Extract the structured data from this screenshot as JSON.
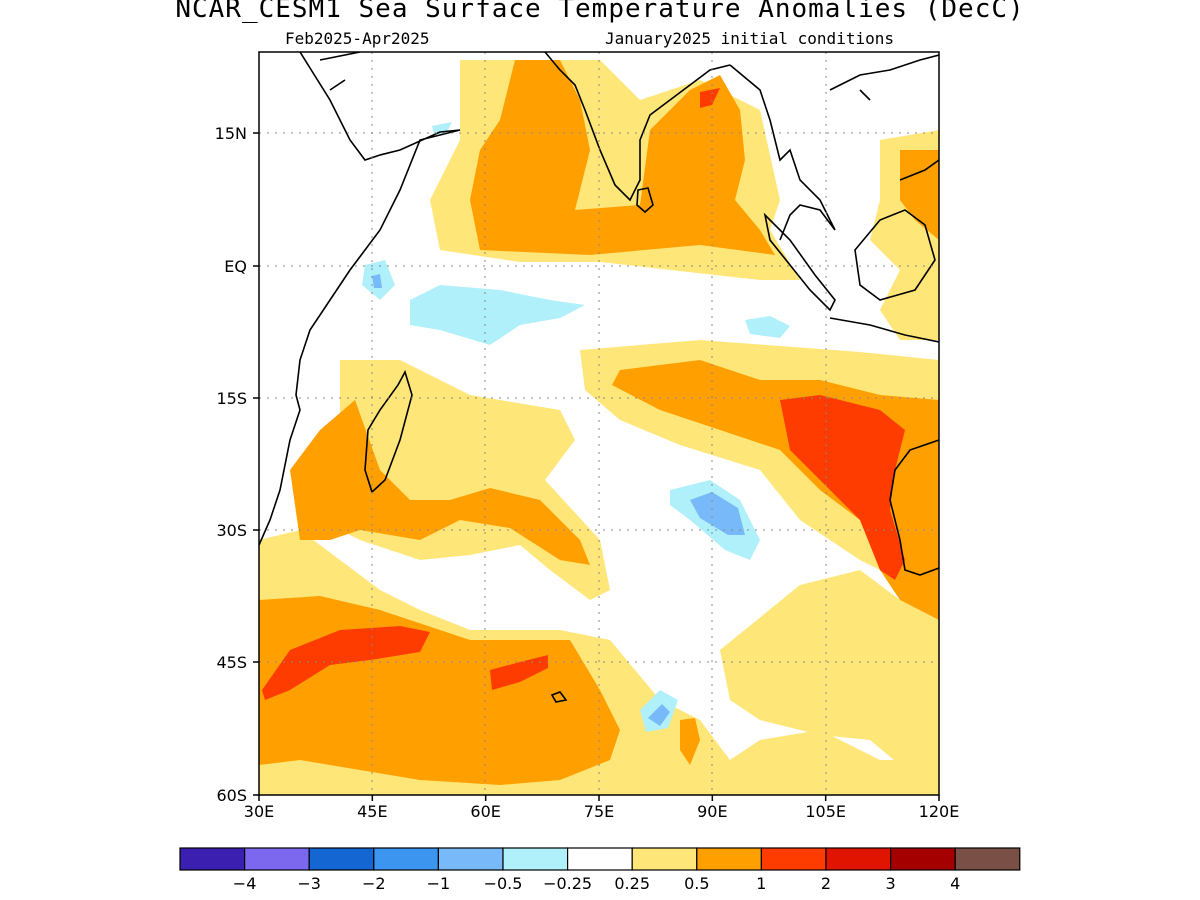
{
  "header": {
    "title": "NCAR_CESM1 Sea Surface Temperature Anomalies (DecC)",
    "period": "Feb2025-Apr2025",
    "init": "January2025 initial conditions"
  },
  "map": {
    "lon_labels": [
      "30E",
      "45E",
      "60E",
      "75E",
      "90E",
      "105E",
      "120E"
    ],
    "lat_labels": [
      "15N",
      "EQ",
      "15S",
      "30S",
      "45S",
      "60S"
    ],
    "lon_range": [
      30,
      120
    ],
    "lat_range": [
      -60,
      24
    ]
  },
  "legend": {
    "colors": [
      "#3a1fb0",
      "#7b68ee",
      "#1466d2",
      "#3c96f0",
      "#78b9fa",
      "#aff0fa",
      "#ffffff",
      "#ffe678",
      "#ffa000",
      "#ff3c00",
      "#e11400",
      "#a50000",
      "#7a4f45"
    ],
    "labels": [
      "-4",
      "-3",
      "-2",
      "-1",
      "-0.5",
      "-0.25",
      "0.25",
      "0.5",
      "1",
      "2",
      "3",
      "4"
    ]
  }
}
